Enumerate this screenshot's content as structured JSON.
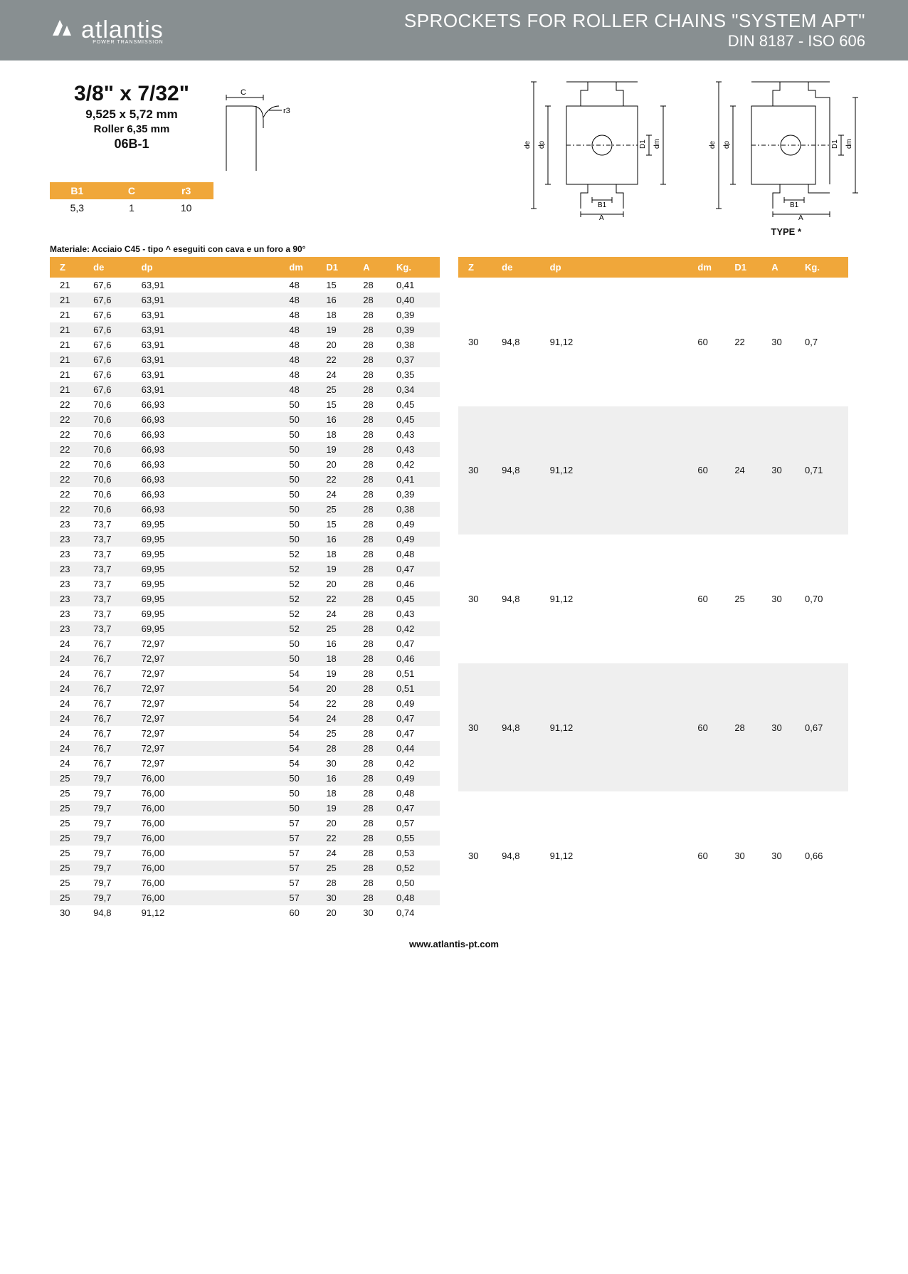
{
  "header": {
    "brand": "atlantis",
    "brand_sub": "POWER TRANSMISSION",
    "title": "SPROCKETS FOR ROLLER CHAINS \"SYSTEM APT\"",
    "subtitle": "DIN 8187 - ISO 606"
  },
  "spec": {
    "size": "3/8\" x 7/32\"",
    "mm": "9,525 x 5,72 mm",
    "roller": "Roller 6,35 mm",
    "code": "06B-1"
  },
  "mini_table": {
    "headers": [
      "B1",
      "C",
      "r3"
    ],
    "row": [
      "5,3",
      "1",
      "10"
    ]
  },
  "material_note": "Materiale: Acciaio C45 - tipo ^ eseguiti con cava e un foro a 90°",
  "type_label": "TYPE *",
  "diagram_labels": {
    "c": "C",
    "r3": "r3",
    "de": "de",
    "dp": "dp",
    "d1": "D1",
    "dm": "dm",
    "b1": "B1",
    "a": "A"
  },
  "table_headers": [
    "Z",
    "de",
    "dp",
    "dm",
    "D1",
    "A",
    "Kg."
  ],
  "left_rows": [
    [
      "21",
      "67,6",
      "63,91",
      "48",
      "15",
      "28",
      "0,41"
    ],
    [
      "21",
      "67,6",
      "63,91",
      "48",
      "16",
      "28",
      "0,40"
    ],
    [
      "21",
      "67,6",
      "63,91",
      "48",
      "18",
      "28",
      "0,39"
    ],
    [
      "21",
      "67,6",
      "63,91",
      "48",
      "19",
      "28",
      "0,39"
    ],
    [
      "21",
      "67,6",
      "63,91",
      "48",
      "20",
      "28",
      "0,38"
    ],
    [
      "21",
      "67,6",
      "63,91",
      "48",
      "22",
      "28",
      "0,37"
    ],
    [
      "21",
      "67,6",
      "63,91",
      "48",
      "24",
      "28",
      "0,35"
    ],
    [
      "21",
      "67,6",
      "63,91",
      "48",
      "25",
      "28",
      "0,34"
    ],
    [
      "22",
      "70,6",
      "66,93",
      "50",
      "15",
      "28",
      "0,45"
    ],
    [
      "22",
      "70,6",
      "66,93",
      "50",
      "16",
      "28",
      "0,45"
    ],
    [
      "22",
      "70,6",
      "66,93",
      "50",
      "18",
      "28",
      "0,43"
    ],
    [
      "22",
      "70,6",
      "66,93",
      "50",
      "19",
      "28",
      "0,43"
    ],
    [
      "22",
      "70,6",
      "66,93",
      "50",
      "20",
      "28",
      "0,42"
    ],
    [
      "22",
      "70,6",
      "66,93",
      "50",
      "22",
      "28",
      "0,41"
    ],
    [
      "22",
      "70,6",
      "66,93",
      "50",
      "24",
      "28",
      "0,39"
    ],
    [
      "22",
      "70,6",
      "66,93",
      "50",
      "25",
      "28",
      "0,38"
    ],
    [
      "23",
      "73,7",
      "69,95",
      "50",
      "15",
      "28",
      "0,49"
    ],
    [
      "23",
      "73,7",
      "69,95",
      "50",
      "16",
      "28",
      "0,49"
    ],
    [
      "23",
      "73,7",
      "69,95",
      "52",
      "18",
      "28",
      "0,48"
    ],
    [
      "23",
      "73,7",
      "69,95",
      "52",
      "19",
      "28",
      "0,47"
    ],
    [
      "23",
      "73,7",
      "69,95",
      "52",
      "20",
      "28",
      "0,46"
    ],
    [
      "23",
      "73,7",
      "69,95",
      "52",
      "22",
      "28",
      "0,45"
    ],
    [
      "23",
      "73,7",
      "69,95",
      "52",
      "24",
      "28",
      "0,43"
    ],
    [
      "23",
      "73,7",
      "69,95",
      "52",
      "25",
      "28",
      "0,42"
    ],
    [
      "24",
      "76,7",
      "72,97",
      "50",
      "16",
      "28",
      "0,47"
    ],
    [
      "24",
      "76,7",
      "72,97",
      "50",
      "18",
      "28",
      "0,46"
    ],
    [
      "24",
      "76,7",
      "72,97",
      "54",
      "19",
      "28",
      "0,51"
    ],
    [
      "24",
      "76,7",
      "72,97",
      "54",
      "20",
      "28",
      "0,51"
    ],
    [
      "24",
      "76,7",
      "72,97",
      "54",
      "22",
      "28",
      "0,49"
    ],
    [
      "24",
      "76,7",
      "72,97",
      "54",
      "24",
      "28",
      "0,47"
    ],
    [
      "24",
      "76,7",
      "72,97",
      "54",
      "25",
      "28",
      "0,47"
    ],
    [
      "24",
      "76,7",
      "72,97",
      "54",
      "28",
      "28",
      "0,44"
    ],
    [
      "24",
      "76,7",
      "72,97",
      "54",
      "30",
      "28",
      "0,42"
    ],
    [
      "25",
      "79,7",
      "76,00",
      "50",
      "16",
      "28",
      "0,49"
    ],
    [
      "25",
      "79,7",
      "76,00",
      "50",
      "18",
      "28",
      "0,48"
    ],
    [
      "25",
      "79,7",
      "76,00",
      "50",
      "19",
      "28",
      "0,47"
    ],
    [
      "25",
      "79,7",
      "76,00",
      "57",
      "20",
      "28",
      "0,57"
    ],
    [
      "25",
      "79,7",
      "76,00",
      "57",
      "22",
      "28",
      "0,55"
    ],
    [
      "25",
      "79,7",
      "76,00",
      "57",
      "24",
      "28",
      "0,53"
    ],
    [
      "25",
      "79,7",
      "76,00",
      "57",
      "25",
      "28",
      "0,52"
    ],
    [
      "25",
      "79,7",
      "76,00",
      "57",
      "28",
      "28",
      "0,50"
    ],
    [
      "25",
      "79,7",
      "76,00",
      "57",
      "30",
      "28",
      "0,48"
    ],
    [
      "30",
      "94,8",
      "91,12",
      "60",
      "20",
      "30",
      "0,74"
    ]
  ],
  "right_rows": [
    [
      "30",
      "94,8",
      "91,12",
      "60",
      "22",
      "30",
      "0,7"
    ],
    [
      "30",
      "94,8",
      "91,12",
      "60",
      "24",
      "30",
      "0,71"
    ],
    [
      "30",
      "94,8",
      "91,12",
      "60",
      "25",
      "30",
      "0,70"
    ],
    [
      "30",
      "94,8",
      "91,12",
      "60",
      "28",
      "30",
      "0,67"
    ],
    [
      "30",
      "94,8",
      "91,12",
      "60",
      "30",
      "30",
      "0,66"
    ]
  ],
  "footer_url": "www.atlantis-pt.com",
  "colors": {
    "header_bg": "#888f91",
    "accent": "#f0a73a",
    "stripe": "#efefef"
  }
}
